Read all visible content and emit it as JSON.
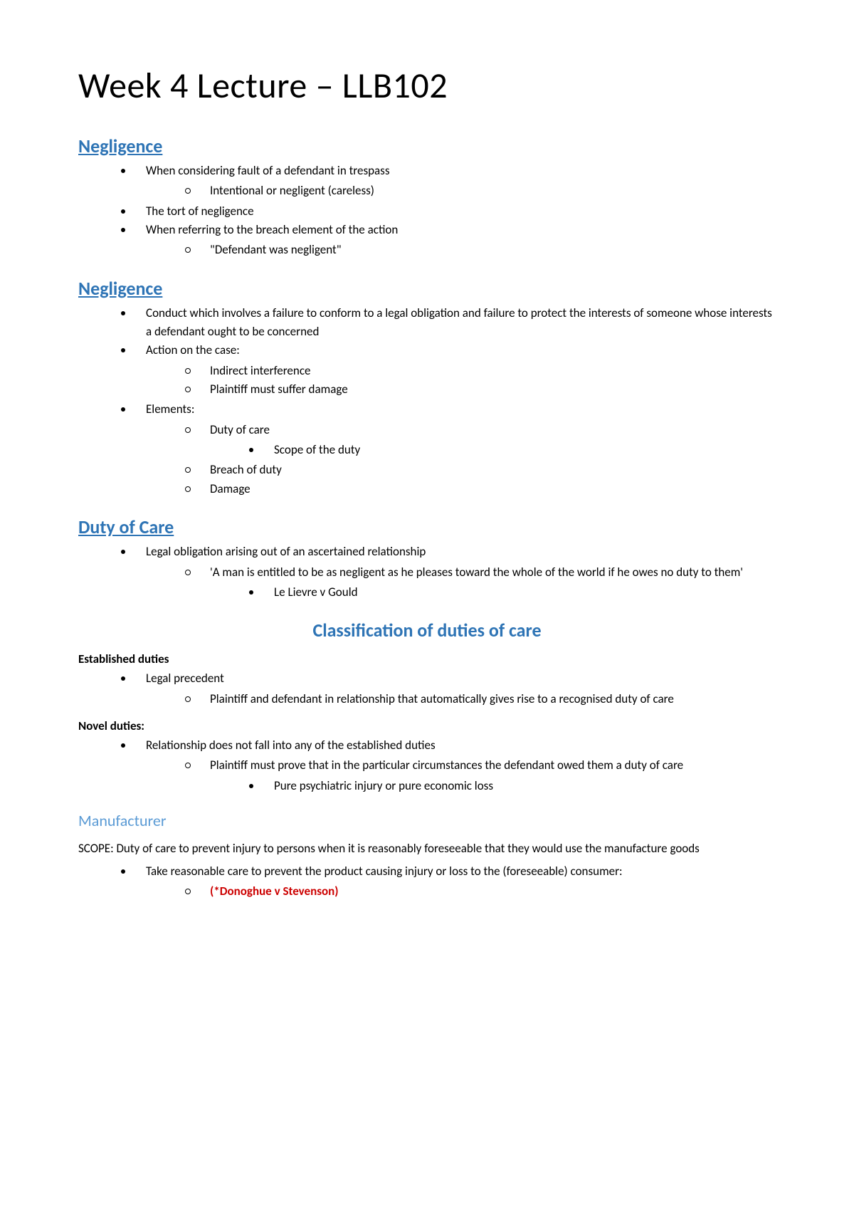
{
  "title": "Week 4 Lecture – LLB102",
  "sections": {
    "neg1": {
      "heading": "Negligence",
      "b1": "When considering fault of a defendant in trespass",
      "b1a": "Intentional or negligent (careless)",
      "b2": "The tort of negligence",
      "b3": "When referring to the breach element of the action",
      "b3a": "\"Defendant was negligent\""
    },
    "neg2": {
      "heading": "Negligence",
      "b1": "Conduct which involves a failure to conform to a legal obligation and failure to protect the interests of someone whose interests a defendant ought to be concerned",
      "b2": "Action on the case:",
      "b2a": "Indirect interference",
      "b2b": "Plaintiff must suffer damage",
      "b3": "Elements:",
      "b3a": "Duty of care",
      "b3a1": "Scope of the duty",
      "b3b": "Breach of duty",
      "b3c": "Damage"
    },
    "duty": {
      "heading": "Duty of Care",
      "b1": "Legal obligation arising out of an ascertained relationship",
      "b1a": "'A man is entitled to be as negligent as he pleases toward the whole of the world if he owes no duty to them'",
      "b1a1": "Le Lievre v Gould"
    },
    "class": {
      "heading": "Classification of duties of care",
      "est_label": "Established duties",
      "est_b1": "Legal precedent",
      "est_b1a": "Plaintiff and defendant in relationship that automatically gives rise to a recognised duty of care",
      "nov_label": "Novel duties:",
      "nov_b1": "Relationship does not fall into any of the established duties",
      "nov_b1a": "Plaintiff must prove that in the particular circumstances the defendant owed them a duty of care",
      "nov_b1a1": "Pure psychiatric injury or pure economic loss"
    },
    "manuf": {
      "heading": "Manufacturer",
      "scope": "SCOPE: Duty of care to prevent injury to persons when it is reasonably foreseeable that they would use the manufacture goods",
      "b1": "Take reasonable care to prevent the product causing injury or loss to the (foreseeable) consumer:",
      "b1a": "(*Donoghue v Stevenson)"
    }
  }
}
